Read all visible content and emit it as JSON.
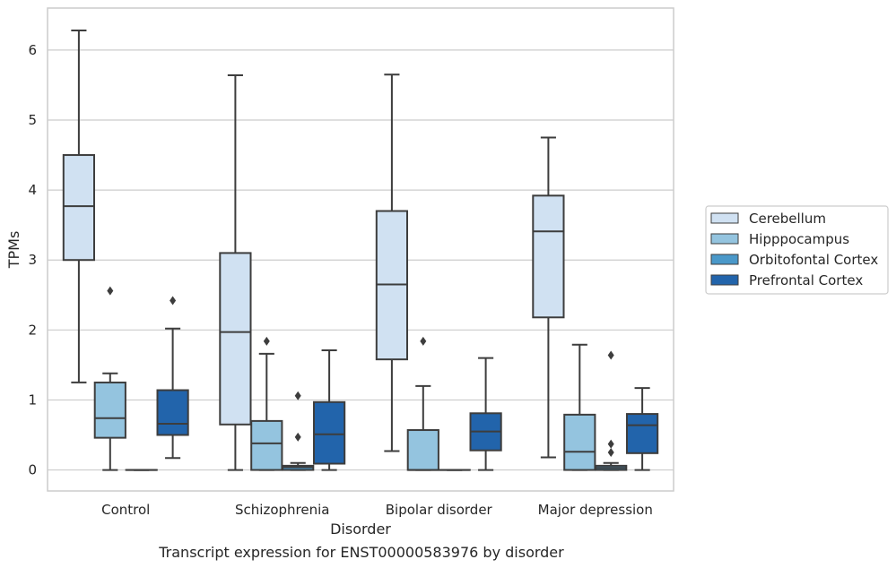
{
  "chart_data": {
    "type": "box",
    "caption": "Transcript expression for ENST00000583976 by disorder",
    "xlabel": "Disorder",
    "ylabel": "TPMs",
    "ylim": [
      -0.3,
      6.6
    ],
    "yticks": [
      0,
      1,
      2,
      3,
      4,
      5,
      6
    ],
    "grid": "horizontal",
    "legend_position": "right",
    "categories": [
      "Control",
      "Schizophrenia",
      "Bipolar disorder",
      "Major depression"
    ],
    "series": [
      {
        "name": "Cerebellum",
        "color": "#d0e1f2",
        "boxes": [
          {
            "whisker_low": 1.25,
            "q1": 3.0,
            "median": 3.77,
            "q3": 4.5,
            "whisker_high": 6.28,
            "outliers": []
          },
          {
            "whisker_low": 0.0,
            "q1": 0.65,
            "median": 1.97,
            "q3": 3.1,
            "whisker_high": 5.64,
            "outliers": []
          },
          {
            "whisker_low": 0.27,
            "q1": 1.58,
            "median": 2.65,
            "q3": 3.7,
            "whisker_high": 5.65,
            "outliers": []
          },
          {
            "whisker_low": 0.18,
            "q1": 2.18,
            "median": 3.41,
            "q3": 3.92,
            "whisker_high": 4.75,
            "outliers": []
          }
        ]
      },
      {
        "name": "Hipppocampus",
        "color": "#94c4df",
        "boxes": [
          {
            "whisker_low": 0.0,
            "q1": 0.46,
            "median": 0.74,
            "q3": 1.25,
            "whisker_high": 1.38,
            "outliers": [
              2.56
            ]
          },
          {
            "whisker_low": 0.0,
            "q1": 0.0,
            "median": 0.38,
            "q3": 0.7,
            "whisker_high": 1.66,
            "outliers": [
              1.84
            ]
          },
          {
            "whisker_low": 0.0,
            "q1": 0.0,
            "median": 0.0,
            "q3": 0.57,
            "whisker_high": 1.2,
            "outliers": [
              1.84
            ]
          },
          {
            "whisker_low": 0.0,
            "q1": 0.0,
            "median": 0.26,
            "q3": 0.79,
            "whisker_high": 1.79,
            "outliers": []
          }
        ]
      },
      {
        "name": "Orbitofontal Cortex",
        "color": "#4a98c9",
        "boxes": [
          {
            "whisker_low": 0.0,
            "q1": 0.0,
            "median": 0.0,
            "q3": 0.0,
            "whisker_high": 0.0,
            "outliers": []
          },
          {
            "whisker_low": 0.0,
            "q1": 0.0,
            "median": 0.04,
            "q3": 0.06,
            "whisker_high": 0.1,
            "outliers": [
              0.47,
              1.06
            ]
          },
          {
            "whisker_low": 0.0,
            "q1": 0.0,
            "median": 0.0,
            "q3": 0.0,
            "whisker_high": 0.0,
            "outliers": []
          },
          {
            "whisker_low": 0.0,
            "q1": 0.0,
            "median": 0.03,
            "q3": 0.06,
            "whisker_high": 0.1,
            "outliers": [
              0.25,
              0.37,
              1.64
            ]
          }
        ]
      },
      {
        "name": "Prefrontal Cortex",
        "color": "#2264ab",
        "boxes": [
          {
            "whisker_low": 0.17,
            "q1": 0.5,
            "median": 0.66,
            "q3": 1.14,
            "whisker_high": 2.02,
            "outliers": [
              2.42
            ]
          },
          {
            "whisker_low": 0.0,
            "q1": 0.09,
            "median": 0.51,
            "q3": 0.97,
            "whisker_high": 1.71,
            "outliers": []
          },
          {
            "whisker_low": 0.0,
            "q1": 0.28,
            "median": 0.55,
            "q3": 0.81,
            "whisker_high": 1.6,
            "outliers": []
          },
          {
            "whisker_low": 0.0,
            "q1": 0.24,
            "median": 0.64,
            "q3": 0.8,
            "whisker_high": 1.17,
            "outliers": []
          }
        ]
      }
    ]
  }
}
